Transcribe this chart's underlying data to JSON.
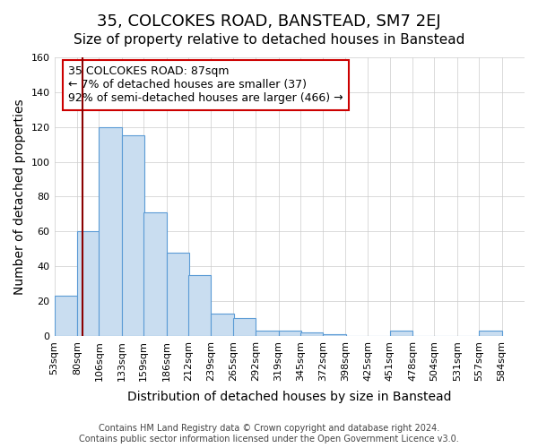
{
  "title": "35, COLCOKES ROAD, BANSTEAD, SM7 2EJ",
  "subtitle": "Size of property relative to detached houses in Banstead",
  "xlabel": "Distribution of detached houses by size in Banstead",
  "ylabel": "Number of detached properties",
  "bin_edges": [
    53,
    80,
    106,
    133,
    159,
    186,
    212,
    239,
    265,
    292,
    319,
    345,
    372,
    398,
    425,
    451,
    478,
    504,
    531,
    557,
    584
  ],
  "bar_heights": [
    23,
    60,
    120,
    115,
    71,
    48,
    35,
    13,
    10,
    3,
    3,
    2,
    1,
    0,
    0,
    3,
    0,
    0,
    0,
    3
  ],
  "bar_facecolor": "#c9ddf0",
  "bar_edgecolor": "#5b9bd5",
  "grid_color": "#cccccc",
  "background_color": "#ffffff",
  "vline_x": 87,
  "vline_color": "#8b0000",
  "ylim": [
    0,
    160
  ],
  "yticks": [
    0,
    20,
    40,
    60,
    80,
    100,
    120,
    140,
    160
  ],
  "xtick_labels": [
    "53sqm",
    "80sqm",
    "106sqm",
    "133sqm",
    "159sqm",
    "186sqm",
    "212sqm",
    "239sqm",
    "265sqm",
    "292sqm",
    "319sqm",
    "345sqm",
    "372sqm",
    "398sqm",
    "425sqm",
    "451sqm",
    "478sqm",
    "504sqm",
    "531sqm",
    "557sqm",
    "584sqm"
  ],
  "annotation_title": "35 COLCOKES ROAD: 87sqm",
  "annotation_line1": "← 7% of detached houses are smaller (37)",
  "annotation_line2": "92% of semi-detached houses are larger (466) →",
  "annotation_box_color": "#ffffff",
  "annotation_box_edgecolor": "#cc0000",
  "footer_line1": "Contains HM Land Registry data © Crown copyright and database right 2024.",
  "footer_line2": "Contains public sector information licensed under the Open Government Licence v3.0.",
  "title_fontsize": 13,
  "subtitle_fontsize": 11,
  "axis_label_fontsize": 10,
  "tick_fontsize": 8,
  "annotation_fontsize": 9,
  "footer_fontsize": 7
}
